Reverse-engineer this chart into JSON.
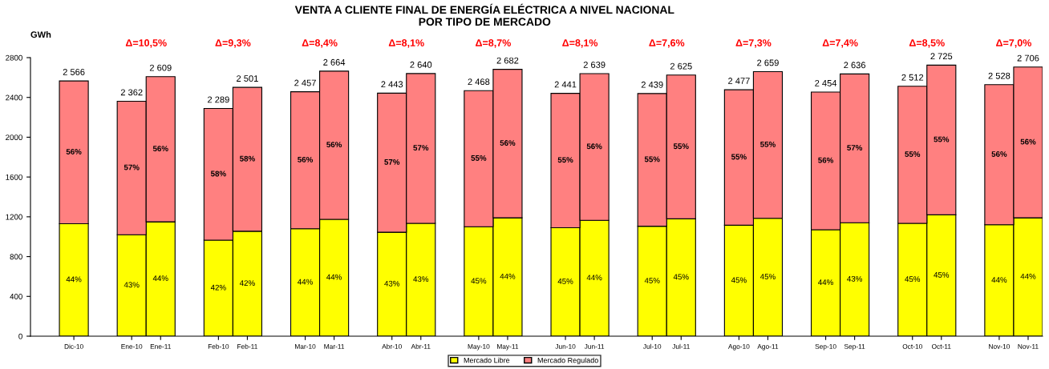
{
  "chart_data": {
    "type": "bar",
    "stacked": true,
    "title": "VENTA A CLIENTE FINAL DE ENERGÍA ELÉCTRICA A NIVEL NACIONAL\nPOR TIPO DE MERCADO",
    "ylabel": "GWh",
    "categories": [
      "Dic-10",
      null,
      "Ene-10",
      "Ene-11",
      null,
      "Feb-10",
      "Feb-11",
      null,
      "Mar-10",
      "Mar-11",
      null,
      "Abr-10",
      "Abr-11",
      null,
      "May-10",
      "May-11",
      null,
      "Jun-10",
      "Jun-11",
      null,
      "Jul-10",
      "Jul-11",
      null,
      "Ago-10",
      "Ago-11",
      null,
      "Sep-10",
      "Sep-11",
      null,
      "Oct-10",
      "Oct-11",
      null,
      "Nov-10",
      "Nov-11"
    ],
    "series": [
      {
        "name": "Mercado Libre",
        "color": "#ffff00",
        "values": [
          1130,
          null,
          1020,
          1150,
          null,
          965,
          1055,
          null,
          1080,
          1175,
          null,
          1045,
          1135,
          null,
          1100,
          1190,
          null,
          1090,
          1165,
          null,
          1105,
          1180,
          null,
          1115,
          1185,
          null,
          1070,
          1140,
          null,
          1135,
          1220,
          null,
          1120,
          1190
        ]
      },
      {
        "name": "Mercado Regulado",
        "color": "#ff8080",
        "values": [
          1436,
          null,
          1342,
          1459,
          null,
          1324,
          1446,
          null,
          1377,
          1489,
          null,
          1398,
          1505,
          null,
          1368,
          1492,
          null,
          1351,
          1474,
          null,
          1334,
          1445,
          null,
          1362,
          1474,
          null,
          1384,
          1496,
          null,
          1377,
          1505,
          null,
          1408,
          1516
        ]
      }
    ],
    "totals": [
      "2 566",
      null,
      "2 362",
      "2 609",
      null,
      "2 289",
      "2 501",
      null,
      "2 457",
      "2 664",
      null,
      "2 443",
      "2 640",
      null,
      "2 468",
      "2 682",
      null,
      "2 441",
      "2 639",
      null,
      "2 439",
      "2 625",
      null,
      "2 477",
      "2 659",
      null,
      "2 454",
      "2 636",
      null,
      "2 512",
      "2 725",
      null,
      "2 528",
      "2 706"
    ],
    "annotations": [
      "Δ=10,5%",
      "Δ=9,3%",
      "Δ=8,4%",
      "Δ=8,1%",
      "Δ=8,7%",
      "Δ=8,1%",
      "Δ=7,6%",
      "Δ=7,3%",
      "Δ=7,4%",
      "Δ=8,5%",
      "Δ=7,0%",
      "44%",
      "56%",
      "43%",
      "57%",
      "44%",
      "56%",
      "42%",
      "58%",
      "42%",
      "58%",
      "44%",
      "56%",
      "44%",
      "56%",
      "43%",
      "57%",
      "43%",
      "57%",
      "45%",
      "55%",
      "44%",
      "56%",
      "45%",
      "55%",
      "44%",
      "56%",
      "45%",
      "55%",
      "45%",
      "55%",
      "45%",
      "55%",
      "45%",
      "55%",
      "44%",
      "56%",
      "43%",
      "57%",
      "45%",
      "55%",
      "45%",
      "55%",
      "44%",
      "56%",
      "44%",
      "56%"
    ],
    "ylim": [
      0,
      2800
    ],
    "yticks": [
      0,
      400,
      800,
      1200,
      1600,
      2000,
      2400,
      2800
    ],
    "grid": false,
    "legend": "bottom"
  }
}
